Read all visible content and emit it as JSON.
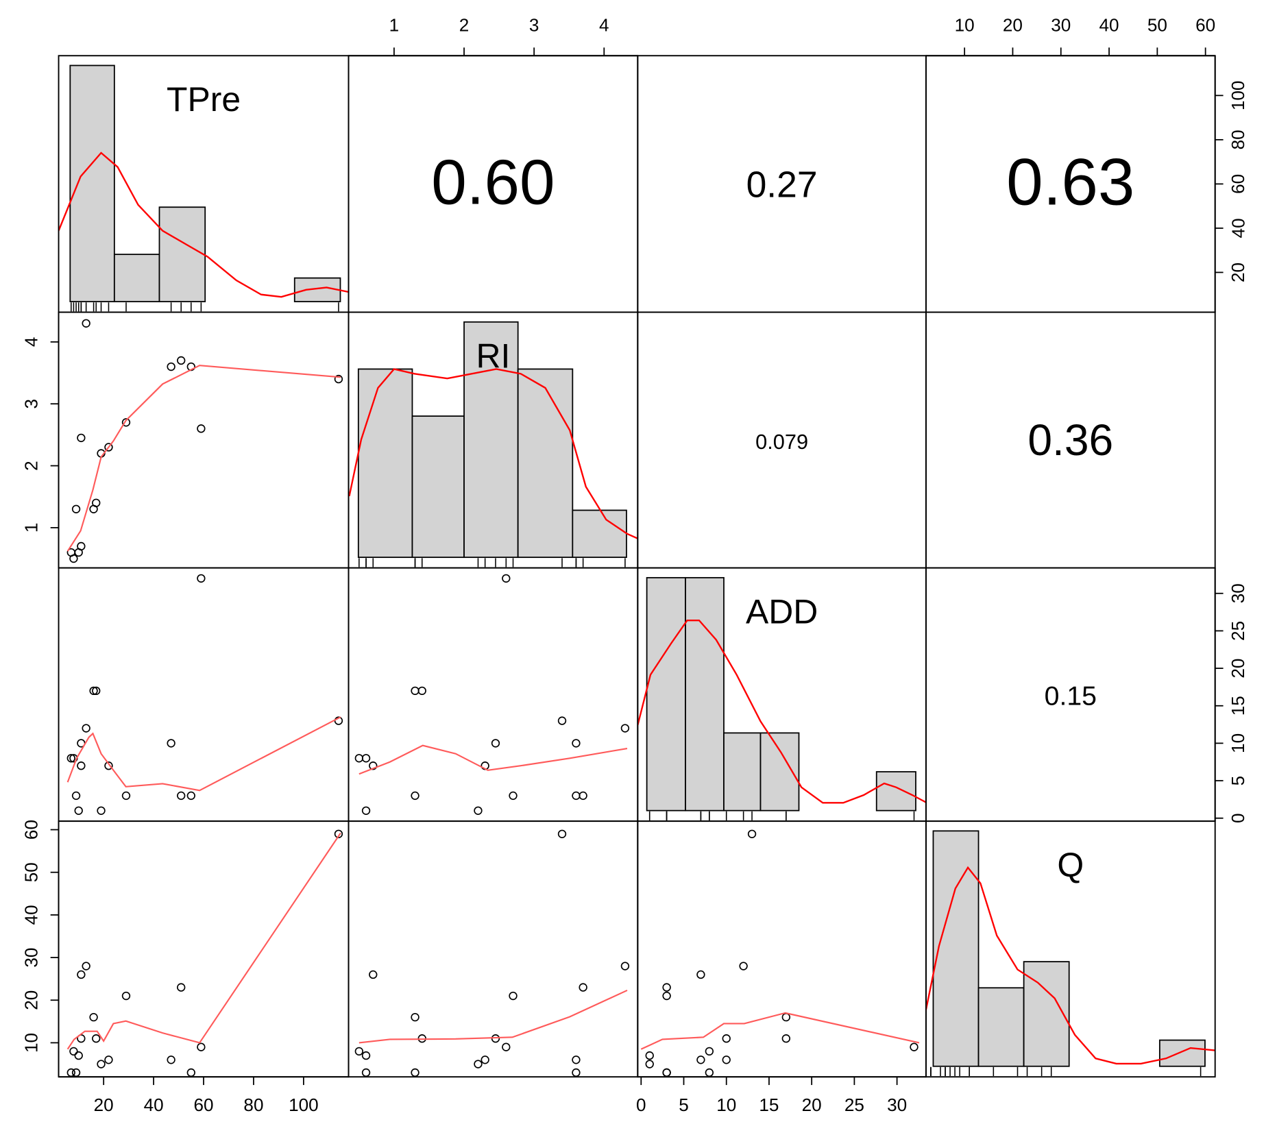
{
  "chart_data": {
    "type": "pairs",
    "variables": [
      {
        "name": "TPre",
        "values": [
          7,
          8,
          9,
          10,
          11,
          11,
          13,
          16,
          17,
          19,
          22,
          29,
          47,
          51,
          55,
          59,
          114
        ],
        "lim": [
          2,
          118
        ],
        "ticks": [
          20,
          40,
          60,
          80,
          100
        ],
        "hist": {
          "bins": [
            6.6,
            24.3,
            42.3,
            60.6,
            78.4,
            96.4,
            114.7
          ],
          "counts": [
            10,
            2,
            4,
            0,
            0,
            1
          ]
        },
        "density": {
          "x": [
            1.6,
            10.8,
            19,
            25.6,
            33.8,
            43.6,
            53.4,
            61.6,
            73.1,
            83,
            91.1,
            101,
            109.2,
            118.4
          ],
          "y": [
            2.9,
            5.3,
            6.3,
            5.7,
            4.1,
            3.0,
            2.4,
            1.9,
            0.9,
            0.3,
            0.2,
            0.5,
            0.6,
            0.4
          ]
        }
      },
      {
        "name": "RI",
        "values": [
          0.6,
          0.5,
          1.3,
          0.6,
          0.7,
          2.45,
          4.3,
          1.3,
          1.4,
          2.2,
          2.3,
          2.7,
          3.6,
          3.7,
          3.6,
          2.6,
          3.4
        ],
        "lim": [
          0.35,
          4.48
        ],
        "ticks": [
          1,
          2,
          3,
          4
        ],
        "hist": {
          "bins": [
            0.49,
            1.26,
            2.0,
            2.77,
            3.55,
            4.32
          ],
          "counts": [
            4,
            3,
            5,
            4,
            1
          ]
        },
        "density": {
          "x": [
            0.36,
            0.53,
            0.77,
            1.0,
            1.29,
            1.76,
            2.11,
            2.46,
            2.81,
            3.16,
            3.51,
            3.74,
            4.03,
            4.33,
            4.48
          ],
          "y": [
            1.3,
            2.5,
            3.6,
            4.0,
            3.9,
            3.8,
            3.9,
            4.0,
            3.9,
            3.6,
            2.7,
            1.5,
            0.8,
            0.5,
            0.4
          ]
        }
      },
      {
        "name": "ADD",
        "values": [
          8,
          8,
          3,
          1,
          7,
          10,
          12,
          17,
          17,
          1,
          7,
          3,
          10,
          3,
          3,
          32,
          13
        ],
        "lim": [
          -0.4,
          33.4
        ],
        "ticks": [
          0,
          5,
          10,
          15,
          20,
          25,
          30
        ],
        "hist": {
          "bins": [
            0.67,
            5.2,
            9.7,
            14.0,
            18.5,
            23.0,
            27.6,
            32.2
          ],
          "counts": [
            6,
            6,
            2,
            2,
            0,
            0,
            1
          ]
        },
        "density": {
          "x": [
            -0.4,
            1.1,
            3.5,
            5.4,
            6.8,
            8.8,
            11.2,
            14.0,
            16.4,
            18.8,
            21.3,
            23.7,
            26.1,
            28.5,
            29.9,
            31.8,
            33.5
          ],
          "y": [
            2.2,
            3.5,
            4.3,
            4.9,
            4.9,
            4.4,
            3.5,
            2.3,
            1.5,
            0.6,
            0.2,
            0.2,
            0.4,
            0.7,
            0.6,
            0.4,
            0.2
          ]
        }
      },
      {
        "name": "Q",
        "values": [
          3,
          8,
          3,
          7,
          26,
          11,
          28,
          16,
          11,
          5,
          6,
          21,
          6,
          23,
          3,
          9,
          59
        ],
        "lim": [
          2,
          62
        ],
        "ticks": [
          10,
          20,
          30,
          40,
          50,
          60
        ],
        "hist": {
          "bins": [
            3.5,
            12.9,
            22.3,
            31.7,
            41.1,
            50.5,
            59.9
          ],
          "counts": [
            9,
            3,
            4,
            0,
            0,
            1
          ]
        },
        "density": {
          "x": [
            1.6,
            4.7,
            8.1,
            10.7,
            13.3,
            16.7,
            21.0,
            25.2,
            28.7,
            32.9,
            37.2,
            41.5,
            46.6,
            51.8,
            56.9,
            62.4
          ],
          "y": [
            1.8,
            4.6,
            6.8,
            7.6,
            7.0,
            5.0,
            3.7,
            3.2,
            2.6,
            1.2,
            0.3,
            0.1,
            0.1,
            0.3,
            0.7,
            0.6
          ]
        }
      }
    ],
    "correlations": {
      "values": [
        0.6,
        0.27,
        0.63,
        0.079,
        0.36,
        0.15
      ],
      "value_labels": [
        "0.60",
        "0.27",
        "0.63",
        "0.079",
        "0.36",
        "0.15"
      ]
    },
    "smooths": [
      {
        "x": [
          5.6,
          10.8,
          15.7,
          19,
          23.9,
          28.9,
          43.6,
          58.4,
          114.8
        ],
        "y": [
          0.62,
          0.95,
          1.61,
          2.14,
          2.4,
          2.73,
          3.32,
          3.62,
          3.43
        ]
      },
      {
        "x": [
          5.6,
          9.2,
          14.1,
          15.7,
          19,
          23.9,
          28.9,
          43.6,
          58.4,
          114.8
        ],
        "y": [
          4.8,
          8.0,
          10.8,
          11.3,
          8.6,
          6.4,
          4.2,
          4.6,
          3.7,
          13.5
        ]
      },
      {
        "x": [
          0.5,
          0.94,
          1.41,
          1.88,
          2.34,
          2.81,
          3.51,
          4.33
        ],
        "y": [
          5.9,
          7.5,
          9.7,
          8.6,
          6.4,
          7.0,
          8.0,
          9.3
        ]
      },
      {
        "x": [
          5.6,
          8.2,
          12.5,
          17.4,
          20,
          23.9,
          28.9,
          43.6,
          58.4,
          114.8
        ],
        "y": [
          8.5,
          10.8,
          12.7,
          12.7,
          10.4,
          14.5,
          15.1,
          12.3,
          10,
          59.2
        ]
      },
      {
        "x": [
          0.5,
          0.94,
          1.88,
          2.69,
          3.51,
          4.33
        ],
        "y": [
          10,
          10.8,
          10.9,
          11.3,
          16.1,
          22.3
        ]
      },
      {
        "x": [
          0,
          2.5,
          7.3,
          9.7,
          12.1,
          16.9,
          32.6
        ],
        "y": [
          8.5,
          10.8,
          11.3,
          14.5,
          14.5,
          17,
          10
        ]
      }
    ],
    "point_color": "#000000",
    "smooth_color": "#ff5a5a",
    "density_color": "#ff0000",
    "hist_color": "#d3d3d3"
  }
}
